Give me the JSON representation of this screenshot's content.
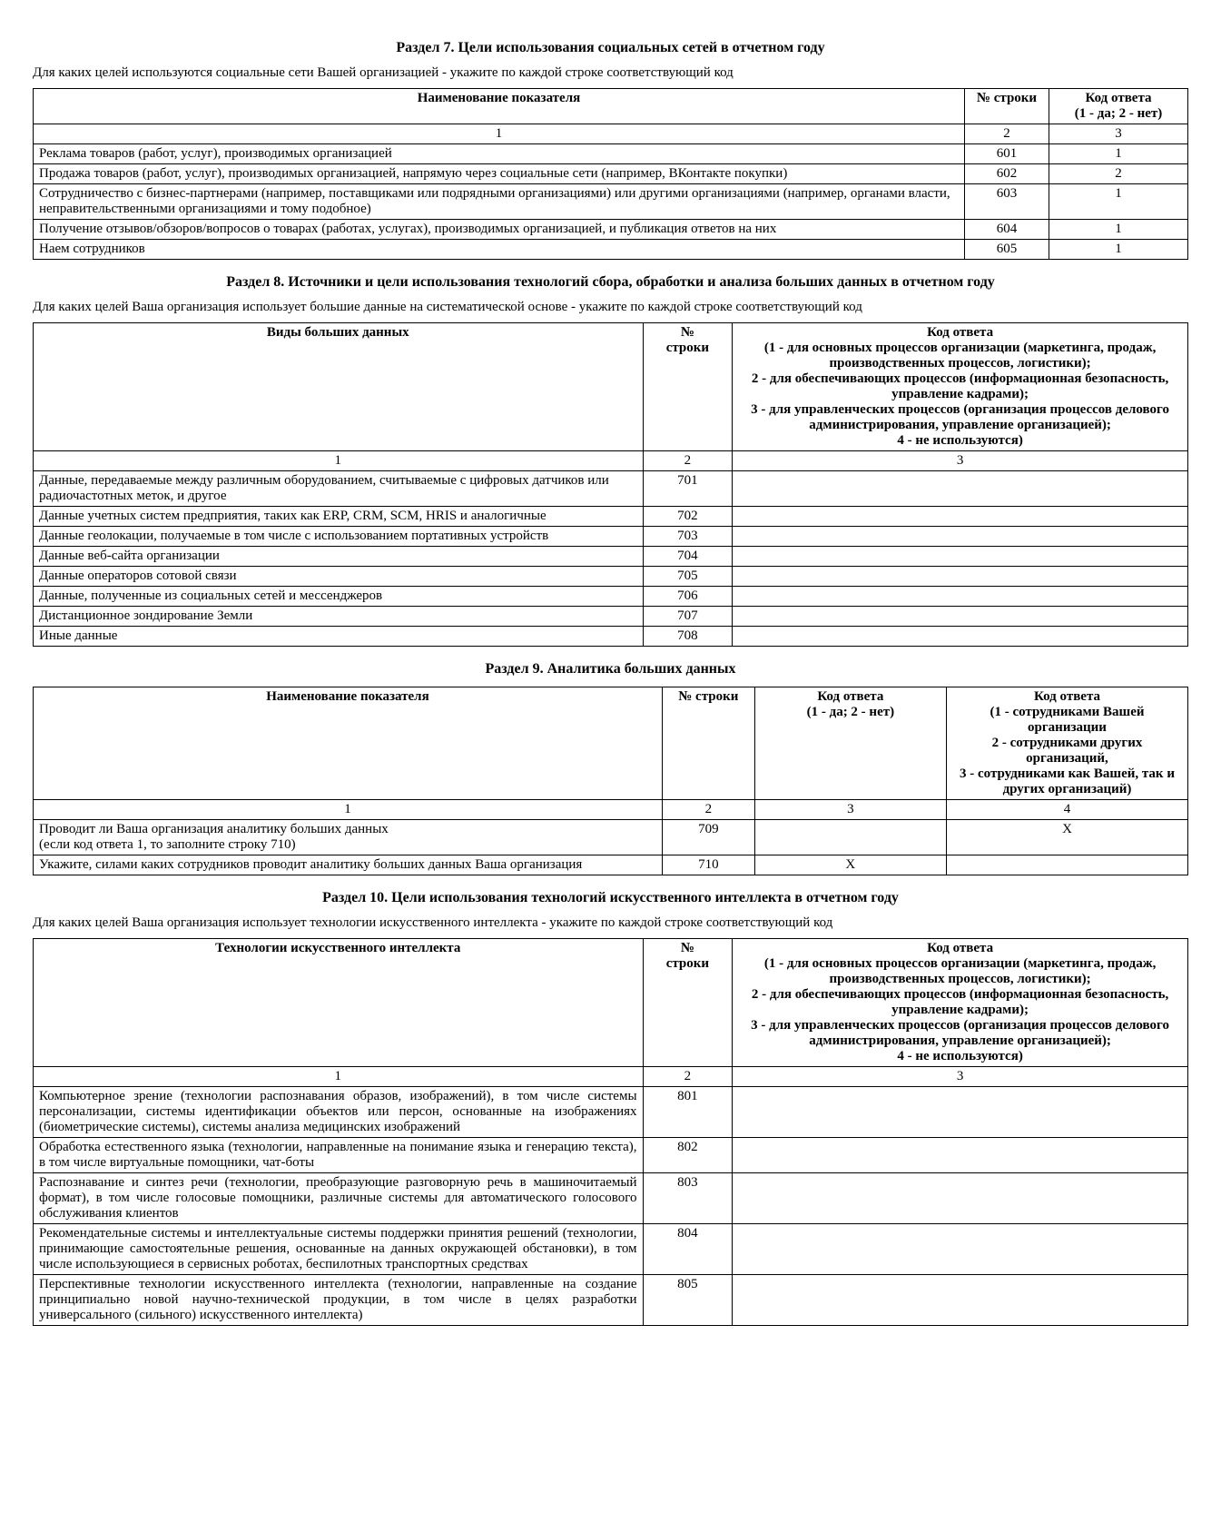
{
  "section7": {
    "title": "Раздел 7. Цели использования социальных сетей в отчетном году",
    "intro": "Для каких целей используются социальные сети Вашей организацией - укажите по каждой строке соответствующий код",
    "headers": {
      "name": "Наименование показателя",
      "line": "№ строки",
      "answer": "Код ответа\n(1 - да; 2 - нет)"
    },
    "colnums": {
      "c1": "1",
      "c2": "2",
      "c3": "3"
    },
    "rows": [
      {
        "name": "Реклама товаров (работ, услуг), производимых организацией",
        "line": "601",
        "ans": "1"
      },
      {
        "name": "Продажа товаров (работ, услуг), производимых организацией, напрямую через социальные сети (например, ВКонтакте покупки)",
        "line": "602",
        "ans": "2"
      },
      {
        "name": "Сотрудничество с бизнес-партнерами (например, поставщиками или подрядными организациями) или другими организациями (например, органами власти, неправительственными организациями и тому подобное)",
        "line": "603",
        "ans": "1"
      },
      {
        "name": "Получение отзывов/обзоров/вопросов о товарах (работах, услугах), производимых организацией, и публикация ответов на них",
        "line": "604",
        "ans": "1"
      },
      {
        "name": "Наем сотрудников",
        "line": "605",
        "ans": "1"
      }
    ]
  },
  "section8": {
    "title": "Раздел 8. Источники и цели использования технологий сбора, обработки и анализа больших данных в отчетном году",
    "intro": "Для каких целей Ваша организация использует большие данные на систематической основе - укажите по каждой строке соответствующий код",
    "headers": {
      "name": "Виды больших данных",
      "line": "№\nстроки",
      "answer": "Код ответа\n(1 - для основных процессов организации (маркетинга, продаж, производственных процессов, логистики);\n2 - для обеспечивающих процессов (информационная безопасность, управление кадрами);\n3 - для управленческих процессов (организация процессов делового администрирования, управление организацией);\n4 - не используются)"
    },
    "colnums": {
      "c1": "1",
      "c2": "2",
      "c3": "3"
    },
    "rows": [
      {
        "name": "Данные, передаваемые между различным оборудованием, считываемые с цифровых датчиков или радиочастотных меток, и другое",
        "line": "701",
        "ans": ""
      },
      {
        "name": "Данные учетных систем предприятия, таких как ERP, CRM, SCM, HRIS и аналогичные",
        "line": "702",
        "ans": ""
      },
      {
        "name": "Данные геолокации, получаемые в том числе с использованием портативных устройств",
        "line": "703",
        "ans": ""
      },
      {
        "name": "Данные веб-сайта организации",
        "line": "704",
        "ans": ""
      },
      {
        "name": "Данные операторов сотовой связи",
        "line": "705",
        "ans": ""
      },
      {
        "name": "Данные, полученные из социальных сетей и мессенджеров",
        "line": "706",
        "ans": ""
      },
      {
        "name": "Дистанционное зондирование Земли",
        "line": "707",
        "ans": ""
      },
      {
        "name": "Иные данные",
        "line": "708",
        "ans": ""
      }
    ]
  },
  "section9": {
    "title": "Раздел 9. Аналитика больших данных",
    "headers": {
      "name": "Наименование показателя",
      "line": "№ строки",
      "ans1": "Код ответа\n(1 - да; 2 - нет)",
      "ans2": "Код ответа\n(1 - сотрудниками Вашей организации\n2 - сотрудниками других организаций,\n3 - сотрудниками как Вашей, так и других организаций)"
    },
    "colnums": {
      "c1": "1",
      "c2": "2",
      "c3": "3",
      "c4": "4"
    },
    "rows": [
      {
        "name": "Проводит ли Ваша организация аналитику больших данных\n(если код ответа 1, то заполните строку 710)",
        "line": "709",
        "a1": "",
        "a2": "Х"
      },
      {
        "name": "Укажите, силами каких сотрудников проводит аналитику больших данных Ваша организация",
        "line": "710",
        "a1": "Х",
        "a2": ""
      }
    ]
  },
  "section10": {
    "title": "Раздел 10. Цели использования технологий искусственного интеллекта в отчетном году",
    "intro": "Для каких целей Ваша организация использует технологии искусственного интеллекта - укажите по каждой строке соответствующий код",
    "headers": {
      "name": "Технологии искусственного интеллекта",
      "line": "№\nстроки",
      "answer": "Код ответа\n(1 - для основных процессов организации (маркетинга, продаж, производственных процессов, логистики);\n2 - для обеспечивающих процессов (информационная безопасность, управление кадрами);\n3 - для управленческих процессов (организация процессов делового администрирования, управление организацией);\n4 - не используются)"
    },
    "colnums": {
      "c1": "1",
      "c2": "2",
      "c3": "3"
    },
    "rows": [
      {
        "name": "Компьютерное зрение (технологии распознавания образов, изображений), в том числе системы персонализации, системы идентификации объектов или персон, основанные на изображениях (биометрические системы), системы анализа медицинских изображений",
        "line": "801",
        "ans": ""
      },
      {
        "name": "Обработка естественного языка (технологии, направленные на понимание языка и генерацию текста), в том числе виртуальные помощники, чат-боты",
        "line": "802",
        "ans": ""
      },
      {
        "name": "Распознавание и синтез речи (технологии, преобразующие разговорную речь в машиночитаемый формат), в том числе голосовые помощники, различные системы для автоматического голосового обслуживания клиентов",
        "line": "803",
        "ans": ""
      },
      {
        "name": "Рекомендательные системы и интеллектуальные системы поддержки принятия решений (технологии, принимающие самостоятельные решения, основанные на данных окружающей обстановки), в том числе использующиеся в сервисных роботах, беспилотных транспортных средствах",
        "line": "804",
        "ans": ""
      },
      {
        "name": "Перспективные технологии искусственного интеллекта (технологии, направленные на создание принципиально новой научно-технической продукции, в том числе в целях разработки универсального (сильного) искусственного интеллекта)",
        "line": "805",
        "ans": ""
      }
    ]
  }
}
